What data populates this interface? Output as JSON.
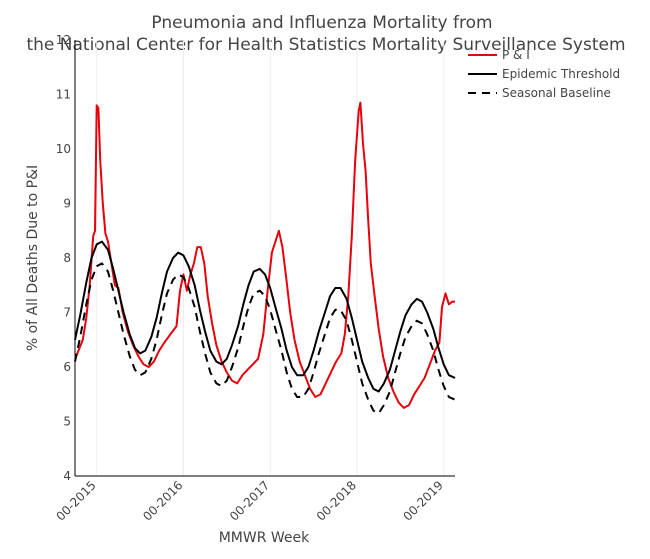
{
  "chart_data": {
    "type": "line",
    "title_lines": [
      "Pneumonia and Influenza Mortality from",
      "the National Center for Health Statistics Mortality Surveillance System"
    ],
    "xlabel": "MMWR Week",
    "ylabel": "% of All Deaths Due to P&I",
    "ylim": [
      4,
      12
    ],
    "yticks": [
      4,
      5,
      6,
      7,
      8,
      9,
      10,
      11,
      12
    ],
    "xlim": [
      2014.75,
      2019.13
    ],
    "xticks": [
      {
        "value": 2015,
        "label": "00-2015"
      },
      {
        "value": 2016,
        "label": "00-2016"
      },
      {
        "value": 2017,
        "label": "00-2017"
      },
      {
        "value": 2018,
        "label": "00-2018"
      },
      {
        "value": 2019,
        "label": "00-2019"
      }
    ],
    "grid": "vertical",
    "legend_position": "top-right",
    "series": [
      {
        "name": "P & I",
        "color": "#e8000b",
        "dash": "solid",
        "points": [
          [
            2014.75,
            6.15
          ],
          [
            2014.79,
            6.3
          ],
          [
            2014.84,
            6.5
          ],
          [
            2014.88,
            6.9
          ],
          [
            2014.92,
            7.5
          ],
          [
            2014.96,
            8.4
          ],
          [
            2014.98,
            8.5
          ],
          [
            2015.0,
            10.8
          ],
          [
            2015.02,
            10.75
          ],
          [
            2015.04,
            9.8
          ],
          [
            2015.07,
            9.0
          ],
          [
            2015.1,
            8.45
          ],
          [
            2015.13,
            8.3
          ],
          [
            2015.17,
            7.9
          ],
          [
            2015.21,
            7.5
          ],
          [
            2015.25,
            7.45
          ],
          [
            2015.3,
            7.0
          ],
          [
            2015.36,
            6.65
          ],
          [
            2015.42,
            6.4
          ],
          [
            2015.48,
            6.2
          ],
          [
            2015.54,
            6.05
          ],
          [
            2015.6,
            6.0
          ],
          [
            2015.66,
            6.1
          ],
          [
            2015.72,
            6.3
          ],
          [
            2015.78,
            6.45
          ],
          [
            2015.85,
            6.6
          ],
          [
            2015.92,
            6.75
          ],
          [
            2015.96,
            7.4
          ],
          [
            2016.0,
            7.7
          ],
          [
            2016.04,
            7.4
          ],
          [
            2016.08,
            7.7
          ],
          [
            2016.12,
            7.9
          ],
          [
            2016.16,
            8.2
          ],
          [
            2016.2,
            8.2
          ],
          [
            2016.24,
            7.9
          ],
          [
            2016.28,
            7.3
          ],
          [
            2016.33,
            6.8
          ],
          [
            2016.38,
            6.4
          ],
          [
            2016.44,
            6.1
          ],
          [
            2016.5,
            5.9
          ],
          [
            2016.56,
            5.75
          ],
          [
            2016.62,
            5.7
          ],
          [
            2016.68,
            5.85
          ],
          [
            2016.74,
            5.95
          ],
          [
            2016.8,
            6.05
          ],
          [
            2016.86,
            6.15
          ],
          [
            2016.92,
            6.6
          ],
          [
            2016.97,
            7.4
          ],
          [
            2017.02,
            8.1
          ],
          [
            2017.06,
            8.3
          ],
          [
            2017.1,
            8.5
          ],
          [
            2017.14,
            8.2
          ],
          [
            2017.18,
            7.7
          ],
          [
            2017.23,
            7.0
          ],
          [
            2017.28,
            6.5
          ],
          [
            2017.34,
            6.1
          ],
          [
            2017.4,
            5.85
          ],
          [
            2017.46,
            5.6
          ],
          [
            2017.52,
            5.45
          ],
          [
            2017.58,
            5.5
          ],
          [
            2017.64,
            5.7
          ],
          [
            2017.7,
            5.9
          ],
          [
            2017.76,
            6.1
          ],
          [
            2017.82,
            6.25
          ],
          [
            2017.86,
            6.6
          ],
          [
            2017.9,
            7.3
          ],
          [
            2017.94,
            8.4
          ],
          [
            2017.98,
            9.8
          ],
          [
            2018.02,
            10.7
          ],
          [
            2018.04,
            10.85
          ],
          [
            2018.07,
            10.1
          ],
          [
            2018.1,
            9.6
          ],
          [
            2018.13,
            8.7
          ],
          [
            2018.16,
            7.9
          ],
          [
            2018.2,
            7.35
          ],
          [
            2018.25,
            6.7
          ],
          [
            2018.3,
            6.2
          ],
          [
            2018.36,
            5.8
          ],
          [
            2018.42,
            5.55
          ],
          [
            2018.48,
            5.35
          ],
          [
            2018.54,
            5.25
          ],
          [
            2018.6,
            5.3
          ],
          [
            2018.66,
            5.5
          ],
          [
            2018.72,
            5.65
          ],
          [
            2018.78,
            5.8
          ],
          [
            2018.84,
            6.05
          ],
          [
            2018.9,
            6.3
          ],
          [
            2018.95,
            6.45
          ],
          [
            2018.98,
            7.1
          ],
          [
            2019.02,
            7.35
          ],
          [
            2019.06,
            7.15
          ],
          [
            2019.1,
            7.2
          ],
          [
            2019.13,
            7.2
          ]
        ]
      },
      {
        "name": "Epidemic Threshold",
        "color": "#000000",
        "dash": "solid",
        "points": [
          [
            2014.75,
            6.5
          ],
          [
            2014.81,
            6.95
          ],
          [
            2014.88,
            7.55
          ],
          [
            2014.94,
            8.0
          ],
          [
            2015.0,
            8.25
          ],
          [
            2015.06,
            8.3
          ],
          [
            2015.13,
            8.15
          ],
          [
            2015.19,
            7.8
          ],
          [
            2015.25,
            7.4
          ],
          [
            2015.31,
            7.0
          ],
          [
            2015.38,
            6.6
          ],
          [
            2015.44,
            6.35
          ],
          [
            2015.5,
            6.25
          ],
          [
            2015.56,
            6.3
          ],
          [
            2015.63,
            6.55
          ],
          [
            2015.69,
            6.9
          ],
          [
            2015.75,
            7.35
          ],
          [
            2015.81,
            7.75
          ],
          [
            2015.88,
            8.0
          ],
          [
            2015.94,
            8.1
          ],
          [
            2016.0,
            8.05
          ],
          [
            2016.06,
            7.85
          ],
          [
            2016.13,
            7.5
          ],
          [
            2016.19,
            7.05
          ],
          [
            2016.25,
            6.65
          ],
          [
            2016.31,
            6.3
          ],
          [
            2016.38,
            6.1
          ],
          [
            2016.44,
            6.05
          ],
          [
            2016.5,
            6.15
          ],
          [
            2016.56,
            6.4
          ],
          [
            2016.63,
            6.75
          ],
          [
            2016.69,
            7.15
          ],
          [
            2016.75,
            7.5
          ],
          [
            2016.81,
            7.75
          ],
          [
            2016.88,
            7.8
          ],
          [
            2016.94,
            7.7
          ],
          [
            2017.0,
            7.45
          ],
          [
            2017.06,
            7.1
          ],
          [
            2017.13,
            6.7
          ],
          [
            2017.19,
            6.3
          ],
          [
            2017.25,
            6.0
          ],
          [
            2017.31,
            5.85
          ],
          [
            2017.38,
            5.85
          ],
          [
            2017.44,
            6.0
          ],
          [
            2017.5,
            6.3
          ],
          [
            2017.56,
            6.65
          ],
          [
            2017.63,
            7.0
          ],
          [
            2017.69,
            7.3
          ],
          [
            2017.75,
            7.45
          ],
          [
            2017.81,
            7.45
          ],
          [
            2017.88,
            7.25
          ],
          [
            2017.94,
            6.9
          ],
          [
            2018.0,
            6.5
          ],
          [
            2018.06,
            6.1
          ],
          [
            2018.13,
            5.8
          ],
          [
            2018.19,
            5.6
          ],
          [
            2018.25,
            5.55
          ],
          [
            2018.31,
            5.7
          ],
          [
            2018.38,
            5.95
          ],
          [
            2018.44,
            6.3
          ],
          [
            2018.5,
            6.65
          ],
          [
            2018.56,
            6.95
          ],
          [
            2018.63,
            7.15
          ],
          [
            2018.69,
            7.25
          ],
          [
            2018.75,
            7.2
          ],
          [
            2018.81,
            7.0
          ],
          [
            2018.88,
            6.7
          ],
          [
            2018.94,
            6.35
          ],
          [
            2019.0,
            6.05
          ],
          [
            2019.06,
            5.85
          ],
          [
            2019.13,
            5.8
          ]
        ]
      },
      {
        "name": "Seasonal Baseline",
        "color": "#000000",
        "dash": "dashed",
        "points": [
          [
            2014.75,
            6.1
          ],
          [
            2014.81,
            6.55
          ],
          [
            2014.88,
            7.15
          ],
          [
            2014.94,
            7.6
          ],
          [
            2015.0,
            7.85
          ],
          [
            2015.06,
            7.9
          ],
          [
            2015.13,
            7.75
          ],
          [
            2015.19,
            7.4
          ],
          [
            2015.25,
            7.0
          ],
          [
            2015.31,
            6.6
          ],
          [
            2015.38,
            6.2
          ],
          [
            2015.44,
            5.95
          ],
          [
            2015.5,
            5.85
          ],
          [
            2015.56,
            5.9
          ],
          [
            2015.63,
            6.15
          ],
          [
            2015.69,
            6.5
          ],
          [
            2015.75,
            6.95
          ],
          [
            2015.81,
            7.35
          ],
          [
            2015.88,
            7.6
          ],
          [
            2015.94,
            7.7
          ],
          [
            2016.0,
            7.65
          ],
          [
            2016.06,
            7.45
          ],
          [
            2016.13,
            7.1
          ],
          [
            2016.19,
            6.65
          ],
          [
            2016.25,
            6.25
          ],
          [
            2016.31,
            5.9
          ],
          [
            2016.38,
            5.7
          ],
          [
            2016.44,
            5.65
          ],
          [
            2016.5,
            5.75
          ],
          [
            2016.56,
            6.0
          ],
          [
            2016.63,
            6.35
          ],
          [
            2016.69,
            6.75
          ],
          [
            2016.75,
            7.1
          ],
          [
            2016.81,
            7.35
          ],
          [
            2016.88,
            7.4
          ],
          [
            2016.94,
            7.3
          ],
          [
            2017.0,
            7.05
          ],
          [
            2017.06,
            6.7
          ],
          [
            2017.13,
            6.3
          ],
          [
            2017.19,
            5.9
          ],
          [
            2017.25,
            5.6
          ],
          [
            2017.31,
            5.45
          ],
          [
            2017.38,
            5.45
          ],
          [
            2017.44,
            5.6
          ],
          [
            2017.5,
            5.9
          ],
          [
            2017.56,
            6.25
          ],
          [
            2017.63,
            6.6
          ],
          [
            2017.69,
            6.9
          ],
          [
            2017.75,
            7.05
          ],
          [
            2017.81,
            7.05
          ],
          [
            2017.88,
            6.85
          ],
          [
            2017.94,
            6.5
          ],
          [
            2018.0,
            6.1
          ],
          [
            2018.06,
            5.7
          ],
          [
            2018.13,
            5.4
          ],
          [
            2018.19,
            5.2
          ],
          [
            2018.25,
            5.15
          ],
          [
            2018.31,
            5.3
          ],
          [
            2018.38,
            5.55
          ],
          [
            2018.44,
            5.9
          ],
          [
            2018.5,
            6.25
          ],
          [
            2018.56,
            6.55
          ],
          [
            2018.63,
            6.75
          ],
          [
            2018.69,
            6.85
          ],
          [
            2018.75,
            6.8
          ],
          [
            2018.81,
            6.6
          ],
          [
            2018.88,
            6.3
          ],
          [
            2018.94,
            5.95
          ],
          [
            2019.0,
            5.65
          ],
          [
            2019.06,
            5.45
          ],
          [
            2019.13,
            5.4
          ]
        ]
      }
    ]
  }
}
